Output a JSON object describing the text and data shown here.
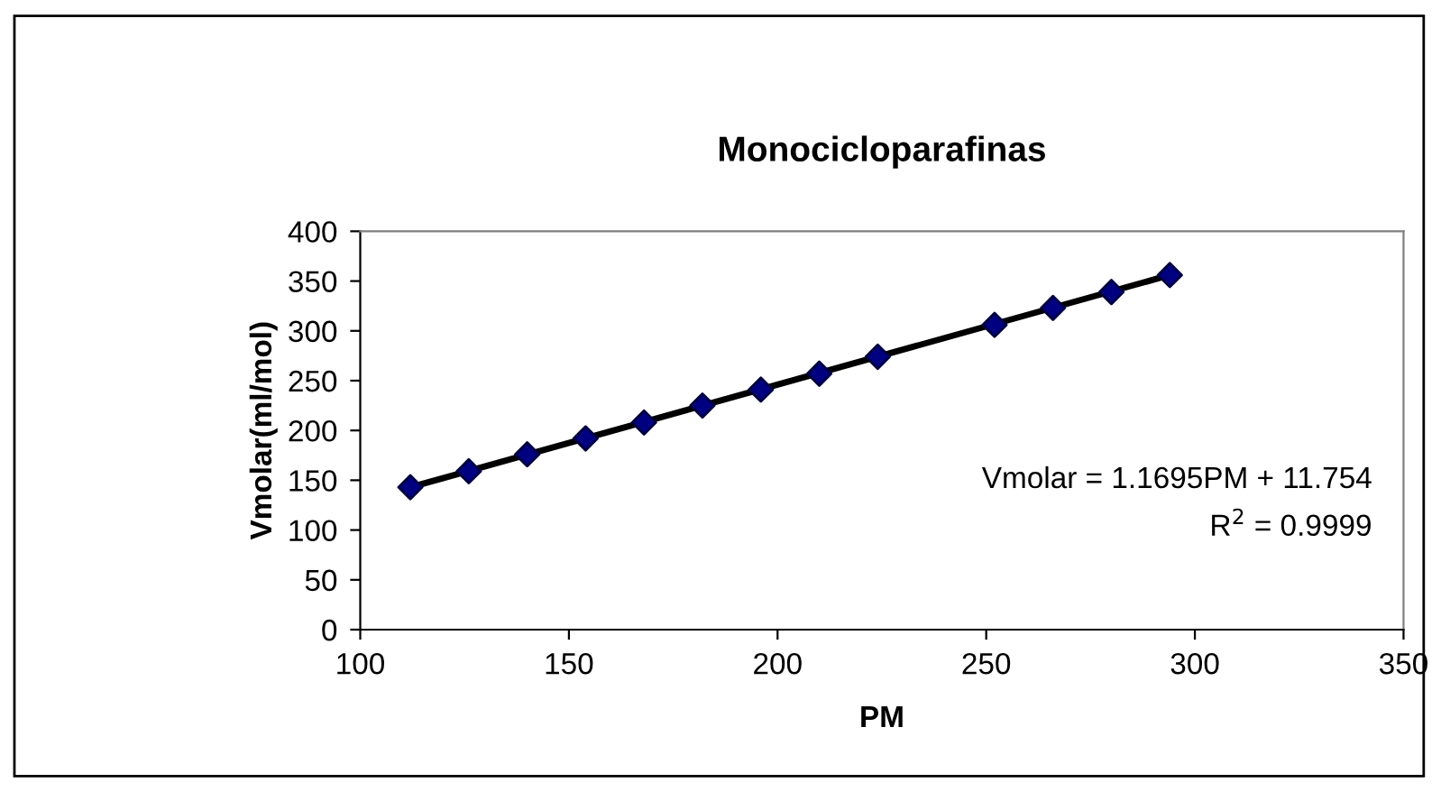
{
  "chart_data": {
    "type": "scatter",
    "title": "Monocicloparafinas",
    "xlabel": "PM",
    "ylabel": "Vmolar(ml/mol)",
    "xlim": [
      100,
      350
    ],
    "xticks": [
      100,
      150,
      200,
      250,
      300,
      350
    ],
    "ylim": [
      0,
      400
    ],
    "yticks": [
      0,
      50,
      100,
      150,
      200,
      250,
      300,
      350,
      400
    ],
    "grid": false,
    "legend": false,
    "series": [
      {
        "color": "#000080",
        "marker": "diamond",
        "x": [
          112,
          126,
          140,
          154,
          168,
          182,
          196,
          210,
          224,
          252,
          266,
          280,
          294
        ],
        "values": [
          143,
          159,
          176,
          192,
          208,
          225,
          241,
          257,
          274,
          306,
          323,
          339,
          356
        ]
      },
      {
        "type": "line",
        "color": "#000000",
        "line_style": "solid",
        "x": [
          112,
          294
        ],
        "values": [
          143,
          356
        ]
      }
    ],
    "annotations": [
      "Vmolar = 1.1695PM + 11.754",
      "R$^{2}$ = 0.9999"
    ]
  }
}
